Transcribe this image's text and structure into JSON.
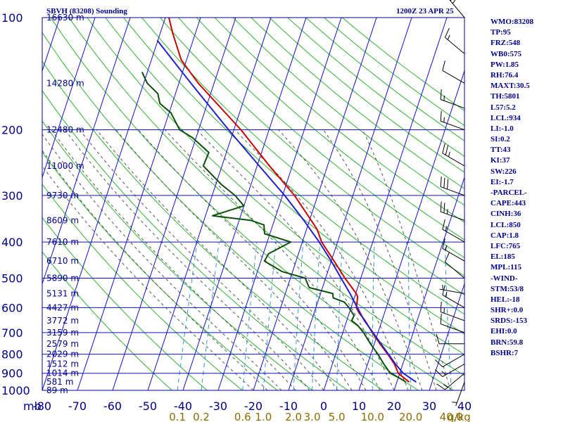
{
  "header": {
    "station_title": "SBVH (83208) Sounding",
    "valid_time": "1200Z 23 APR 25"
  },
  "indices": [
    "WMO:83208",
    "TP:95",
    "FRZ:548",
    "WB0:575",
    "PW:1.85",
    "RH:76.4",
    "MAXT:30.5",
    "TH:5801",
    "L57:5.2",
    "LCL:934",
    "LI:-1.0",
    "SI:0.2",
    "TT:43",
    "KI:37",
    "SW:226",
    "EI:-1.7",
    "-PARCEL-",
    "CAPE:443",
    "CINH:36",
    "LCL:850",
    "CAP:1.8",
    "LFC:765",
    "EL:185",
    "MPL:115",
    "-WIND-",
    "STM:53/8",
    "HEL:-18",
    "SHR+:0.0",
    "SRDS:-153",
    "EHI:0.0",
    "BRN:59.8",
    "BSHR:7"
  ],
  "colors": {
    "frame": "#00008b",
    "isobar_isotherm": "#1010d0",
    "dry_adiabat": "#2fb32f",
    "moist_adiabat": "#555555",
    "mixing_ratio": "#3399cc",
    "temperature": "#cc0000",
    "dewpoint": "#0b4f0b",
    "parcel": "#1f1fcc",
    "tick_text": "#00008b",
    "mixing_ratio_text": "#8b6b00",
    "wind_barb": "#000000"
  },
  "chart_data": {
    "type": "skew-t log-p",
    "pressure_unit": "mb",
    "ylim": [
      1000,
      100
    ],
    "y_scale": "log",
    "pressure_ticks": [
      100,
      200,
      300,
      400,
      500,
      600,
      700,
      800,
      900,
      1000
    ],
    "pressure_axis_label": "mb",
    "temperature_ticks": [
      -80,
      -70,
      -60,
      -50,
      -40,
      -30,
      -20,
      -10,
      0,
      10,
      20,
      30,
      40
    ],
    "temperature_unit": "C",
    "height_labels": [
      {
        "p": 100,
        "text": "16630 m"
      },
      {
        "p": 150,
        "text": "14280 m"
      },
      {
        "p": 200,
        "text": "12480 m"
      },
      {
        "p": 250,
        "text": "11000 m"
      },
      {
        "p": 300,
        "text": "9730 m"
      },
      {
        "p": 350,
        "text": "8609 m"
      },
      {
        "p": 400,
        "text": "7610 m"
      },
      {
        "p": 450,
        "text": "6710 m"
      },
      {
        "p": 500,
        "text": "5890 m"
      },
      {
        "p": 550,
        "text": "5131 m"
      },
      {
        "p": 600,
        "text": "4427 m"
      },
      {
        "p": 650,
        "text": "3772 m"
      },
      {
        "p": 700,
        "text": "3159 m"
      },
      {
        "p": 750,
        "text": "2579 m"
      },
      {
        "p": 800,
        "text": "2029 m"
      },
      {
        "p": 850,
        "text": "1512 m"
      },
      {
        "p": 900,
        "text": "1014 m"
      },
      {
        "p": 950,
        "text": "581 m"
      },
      {
        "p": 1000,
        "text": "89 m"
      }
    ],
    "mixing_ratio_labels": [
      {
        "w": 0.1,
        "text": "0.1"
      },
      {
        "w": 0.2,
        "text": "0.2"
      },
      {
        "w": 0.6,
        "text": "0.6"
      },
      {
        "w": 1.0,
        "text": "1.0"
      },
      {
        "w": 2.0,
        "text": "2.0"
      },
      {
        "w": 3.0,
        "text": "3.0"
      },
      {
        "w": 5.0,
        "text": "5.0"
      },
      {
        "w": 10.0,
        "text": "10.0"
      },
      {
        "w": 20.0,
        "text": "20.0"
      },
      {
        "w": 40.0,
        "text": "40.0"
      }
    ],
    "mixing_ratio_unit": "g/kg",
    "series": [
      {
        "name": "temperature",
        "points": [
          {
            "p": 950,
            "t": 23.5
          },
          {
            "p": 925,
            "t": 21.6
          },
          {
            "p": 900,
            "t": 19.6
          },
          {
            "p": 850,
            "t": 17.6
          },
          {
            "p": 800,
            "t": 14.8
          },
          {
            "p": 750,
            "t": 11.6
          },
          {
            "p": 700,
            "t": 8.4
          },
          {
            "p": 650,
            "t": 5.2
          },
          {
            "p": 620,
            "t": 2.8
          },
          {
            "p": 600,
            "t": 1.5
          },
          {
            "p": 580,
            "t": 1.2
          },
          {
            "p": 560,
            "t": 0.8
          },
          {
            "p": 548,
            "t": 0.0
          },
          {
            "p": 500,
            "t": -4.5
          },
          {
            "p": 450,
            "t": -9.2
          },
          {
            "p": 400,
            "t": -14.5
          },
          {
            "p": 370,
            "t": -17.0
          },
          {
            "p": 350,
            "t": -19.5
          },
          {
            "p": 300,
            "t": -26.6
          },
          {
            "p": 250,
            "t": -36.5
          },
          {
            "p": 200,
            "t": -48.0
          },
          {
            "p": 150,
            "t": -64.5
          },
          {
            "p": 130,
            "t": -71.5
          },
          {
            "p": 110,
            "t": -76.5
          },
          {
            "p": 100,
            "t": -79.0
          }
        ]
      },
      {
        "name": "dewpoint",
        "points": [
          {
            "p": 950,
            "t": 22.6
          },
          {
            "p": 925,
            "t": 20.2
          },
          {
            "p": 900,
            "t": 17.3
          },
          {
            "p": 850,
            "t": 14.6
          },
          {
            "p": 800,
            "t": 12.0
          },
          {
            "p": 750,
            "t": 8.9
          },
          {
            "p": 700,
            "t": 5.9
          },
          {
            "p": 670,
            "t": 3.6
          },
          {
            "p": 650,
            "t": 1.4
          },
          {
            "p": 630,
            "t": 1.6
          },
          {
            "p": 600,
            "t": -0.6
          },
          {
            "p": 580,
            "t": -2.4
          },
          {
            "p": 565,
            "t": -6.0
          },
          {
            "p": 550,
            "t": -6.5
          },
          {
            "p": 530,
            "t": -13.8
          },
          {
            "p": 500,
            "t": -15.8
          },
          {
            "p": 480,
            "t": -23.0
          },
          {
            "p": 450,
            "t": -29.0
          },
          {
            "p": 430,
            "t": -28.5
          },
          {
            "p": 400,
            "t": -23.3
          },
          {
            "p": 380,
            "t": -31.5
          },
          {
            "p": 360,
            "t": -32.5
          },
          {
            "p": 350,
            "t": -36.6
          },
          {
            "p": 340,
            "t": -48.0
          },
          {
            "p": 320,
            "t": -40.0
          },
          {
            "p": 300,
            "t": -43.5
          },
          {
            "p": 280,
            "t": -48.5
          },
          {
            "p": 250,
            "t": -55.3
          },
          {
            "p": 230,
            "t": -55.0
          },
          {
            "p": 210,
            "t": -61.0
          },
          {
            "p": 200,
            "t": -65.4
          },
          {
            "p": 180,
            "t": -69.5
          },
          {
            "p": 170,
            "t": -73.5
          },
          {
            "p": 160,
            "t": -75.0
          },
          {
            "p": 150,
            "t": -79.0
          },
          {
            "p": 140,
            "t": -81.5
          }
        ]
      },
      {
        "name": "parcel",
        "points": [
          {
            "p": 950,
            "t": 25.5
          },
          {
            "p": 900,
            "t": 21.0
          },
          {
            "p": 850,
            "t": 17.9
          },
          {
            "p": 800,
            "t": 15.0
          },
          {
            "p": 750,
            "t": 11.9
          },
          {
            "p": 700,
            "t": 8.6
          },
          {
            "p": 650,
            "t": 5.0
          },
          {
            "p": 600,
            "t": 1.8
          },
          {
            "p": 550,
            "t": -1.6
          },
          {
            "p": 500,
            "t": -5.6
          },
          {
            "p": 450,
            "t": -10.0
          },
          {
            "p": 400,
            "t": -15.2
          },
          {
            "p": 350,
            "t": -21.6
          },
          {
            "p": 300,
            "t": -29.4
          },
          {
            "p": 250,
            "t": -39.4
          },
          {
            "p": 200,
            "t": -51.5
          },
          {
            "p": 150,
            "t": -66.6
          },
          {
            "p": 115,
            "t": -80.2
          }
        ]
      }
    ],
    "wind_barbs": [
      {
        "p": 100,
        "dir": 320,
        "kt": 25
      },
      {
        "p": 125,
        "dir": 310,
        "kt": 15
      },
      {
        "p": 150,
        "dir": 300,
        "kt": 10
      },
      {
        "p": 175,
        "dir": 290,
        "kt": 15
      },
      {
        "p": 200,
        "dir": 290,
        "kt": 15
      },
      {
        "p": 250,
        "dir": 300,
        "kt": 25
      },
      {
        "p": 300,
        "dir": 290,
        "kt": 30
      },
      {
        "p": 350,
        "dir": 290,
        "kt": 25
      },
      {
        "p": 400,
        "dir": 300,
        "kt": 15
      },
      {
        "p": 450,
        "dir": 300,
        "kt": 15
      },
      {
        "p": 500,
        "dir": 310,
        "kt": 10
      },
      {
        "p": 550,
        "dir": 280,
        "kt": 5
      },
      {
        "p": 600,
        "dir": 300,
        "kt": 15
      },
      {
        "p": 650,
        "dir": 290,
        "kt": 15
      },
      {
        "p": 700,
        "dir": 290,
        "kt": 10
      },
      {
        "p": 750,
        "dir": 270,
        "kt": 10
      },
      {
        "p": 800,
        "dir": 240,
        "kt": 10
      },
      {
        "p": 850,
        "dir": 240,
        "kt": 15
      },
      {
        "p": 900,
        "dir": 230,
        "kt": 15
      },
      {
        "p": 950,
        "dir": 200,
        "kt": 5
      }
    ]
  }
}
